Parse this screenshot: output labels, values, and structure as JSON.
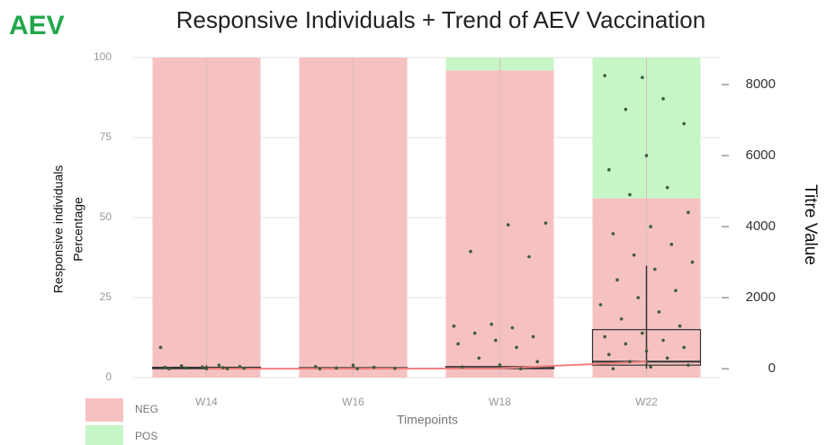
{
  "chart_data": {
    "type": "bar",
    "stacked": true,
    "corner_label": "AEV",
    "title": "Responsive Individuals + Trend of AEV Vaccination",
    "categories": [
      "W14",
      "W16",
      "W18",
      "W22"
    ],
    "series": [
      {
        "name": "NEG",
        "color": "#f5c1c1",
        "values": [
          100,
          100,
          96,
          56
        ]
      },
      {
        "name": "POS",
        "color": "#c6f5c6",
        "values": [
          0,
          0,
          4,
          44
        ]
      }
    ],
    "ylim": [
      0,
      100
    ],
    "yticks": [
      0,
      25,
      50,
      75,
      100
    ],
    "y2lim": [
      -250,
      8760
    ],
    "y2ticks": [
      0,
      2000,
      4000,
      6000,
      8000
    ],
    "xlabel": "Timepoints",
    "ylabel": [
      "Responsive individuals",
      "Percentage"
    ],
    "y2label": "Titre Value",
    "grid": true,
    "legend": "bottom-left",
    "points": [
      [
        600,
        100,
        80,
        60,
        50,
        40,
        30,
        20,
        10,
        0,
        0,
        0
      ],
      [
        100,
        60,
        40,
        20,
        10,
        0,
        0
      ],
      [
        4100,
        4050,
        3300,
        3150,
        1250,
        1200,
        1150,
        1000,
        900,
        800,
        700,
        600,
        300,
        200,
        100,
        50,
        0
      ],
      [
        8200,
        8250,
        7600,
        7300,
        6900,
        6000,
        5600,
        5100,
        4900,
        4400,
        4000,
        3800,
        3500,
        3200,
        3000,
        2800,
        2500,
        2200,
        2000,
        1800,
        1600,
        1400,
        1200,
        1000,
        900,
        800,
        700,
        600,
        500,
        400,
        300,
        200,
        100,
        50,
        0
      ]
    ],
    "point_color": "#3d5c3d",
    "boxes": [
      {
        "low": 0,
        "q1": 0,
        "median": 20,
        "q3": 40,
        "high": 100
      },
      {
        "low": 0,
        "q1": 0,
        "median": 10,
        "q3": 30,
        "high": 60
      },
      {
        "low": 0,
        "q1": 0,
        "median": 20,
        "q3": 60,
        "high": 150
      },
      {
        "low": 0,
        "q1": 100,
        "median": 200,
        "q3": 1100,
        "high": 2900
      }
    ],
    "trend": {
      "values": [
        0,
        0,
        10,
        200
      ],
      "color": "#f08080",
      "axis": "y2"
    }
  }
}
